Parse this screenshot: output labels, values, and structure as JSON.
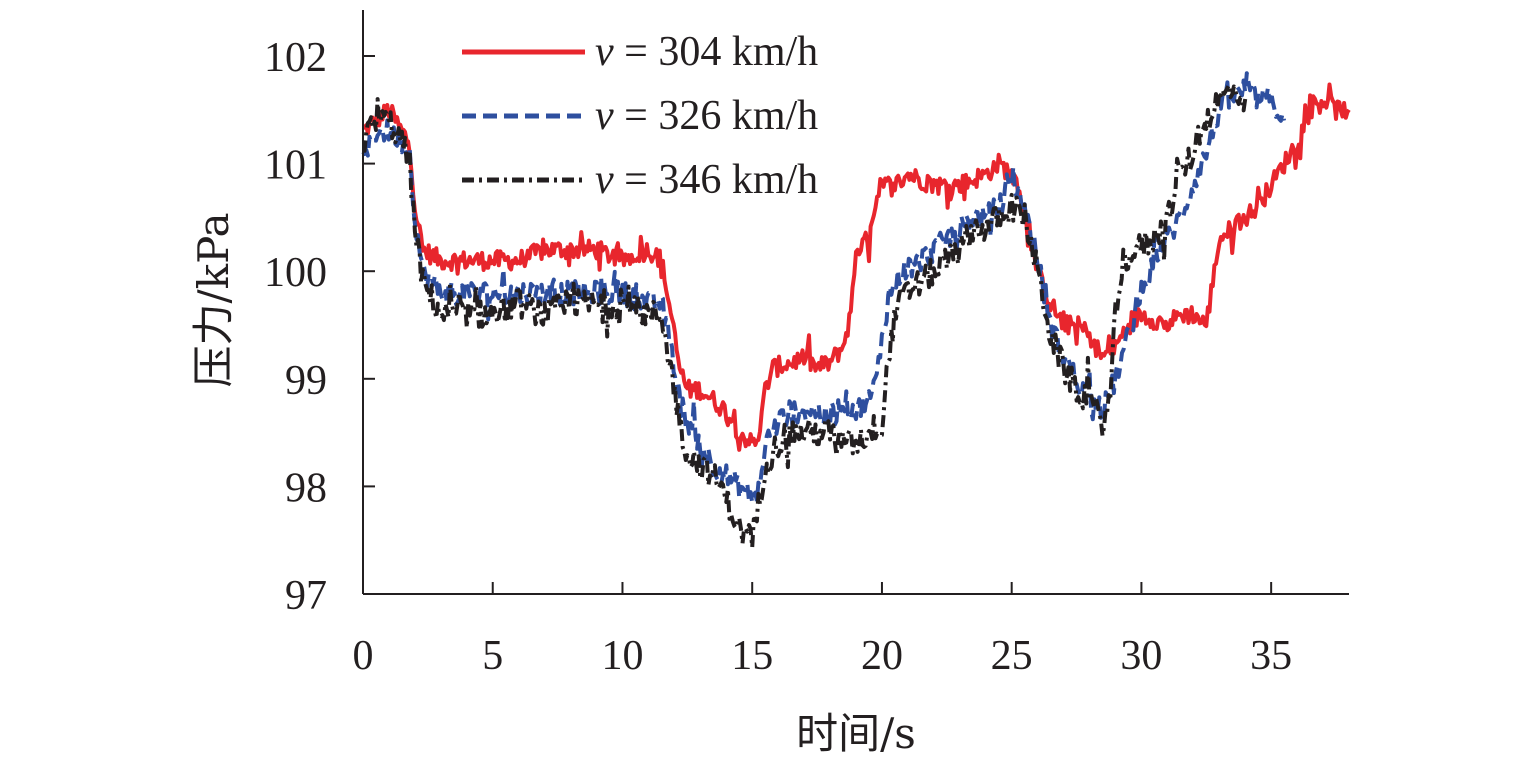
{
  "chart_data": {
    "type": "line",
    "xlabel": "时间/s",
    "ylabel": "压力/kPa",
    "xlim": [
      0,
      38
    ],
    "ylim": [
      97,
      102.5
    ],
    "x_ticks": [
      0,
      5,
      10,
      15,
      20,
      25,
      30,
      35
    ],
    "y_ticks": [
      97,
      98,
      99,
      100,
      101,
      102
    ],
    "grid": false,
    "legend_position": "top-center",
    "series": [
      {
        "name": "= 304 km/h",
        "name_prefix": "v",
        "color": "#e8262d",
        "dash": "solid",
        "points": [
          [
            0,
            101.3
          ],
          [
            0.5,
            101.4
          ],
          [
            1.0,
            101.5
          ],
          [
            1.5,
            101.3
          ],
          [
            1.8,
            101.2
          ],
          [
            2.0,
            100.6
          ],
          [
            2.3,
            100.2
          ],
          [
            3.0,
            100.1
          ],
          [
            4.0,
            100.1
          ],
          [
            5.0,
            100.1
          ],
          [
            6.0,
            100.1
          ],
          [
            7.0,
            100.2
          ],
          [
            8.0,
            100.2
          ],
          [
            9.0,
            100.2
          ],
          [
            10.0,
            100.1
          ],
          [
            11.0,
            100.2
          ],
          [
            11.5,
            100.1
          ],
          [
            11.8,
            99.7
          ],
          [
            12.2,
            99.1
          ],
          [
            12.5,
            98.9
          ],
          [
            13.0,
            98.9
          ],
          [
            13.5,
            98.8
          ],
          [
            14.0,
            98.7
          ],
          [
            14.5,
            98.5
          ],
          [
            15.0,
            98.4
          ],
          [
            15.3,
            98.5
          ],
          [
            15.5,
            98.9
          ],
          [
            15.8,
            99.1
          ],
          [
            16.5,
            99.15
          ],
          [
            17.0,
            99.2
          ],
          [
            17.5,
            99.1
          ],
          [
            18.0,
            99.15
          ],
          [
            18.5,
            99.3
          ],
          [
            18.8,
            99.6
          ],
          [
            19.0,
            100.2
          ],
          [
            19.5,
            100.3
          ],
          [
            20.0,
            100.8
          ],
          [
            20.5,
            100.8
          ],
          [
            21.0,
            100.9
          ],
          [
            22.0,
            100.8
          ],
          [
            23.0,
            100.8
          ],
          [
            24.0,
            100.9
          ],
          [
            24.5,
            101.0
          ],
          [
            25.0,
            100.9
          ],
          [
            25.3,
            100.8
          ],
          [
            25.5,
            100.5
          ],
          [
            26.0,
            100.0
          ],
          [
            26.5,
            99.7
          ],
          [
            27.0,
            99.5
          ],
          [
            27.5,
            99.5
          ],
          [
            28.0,
            99.4
          ],
          [
            28.5,
            99.2
          ],
          [
            29.0,
            99.3
          ],
          [
            29.5,
            99.5
          ],
          [
            30.0,
            99.6
          ],
          [
            31.0,
            99.5
          ],
          [
            31.5,
            99.6
          ],
          [
            32.0,
            99.6
          ],
          [
            32.5,
            99.5
          ],
          [
            33.0,
            100.3
          ],
          [
            33.5,
            100.4
          ],
          [
            34.0,
            100.5
          ],
          [
            34.5,
            100.6
          ],
          [
            35.0,
            100.8
          ],
          [
            35.5,
            101.0
          ],
          [
            36.0,
            101.2
          ],
          [
            36.5,
            101.5
          ],
          [
            37.0,
            101.6
          ],
          [
            37.5,
            101.5
          ],
          [
            38.0,
            101.5
          ]
        ]
      },
      {
        "name": "= 326 km/h",
        "name_prefix": "v",
        "color": "#2e4f9f",
        "dash": "dashed",
        "points": [
          [
            0,
            101.0
          ],
          [
            0.5,
            101.3
          ],
          [
            1.0,
            101.3
          ],
          [
            1.5,
            101.2
          ],
          [
            1.8,
            101.1
          ],
          [
            2.0,
            100.5
          ],
          [
            2.3,
            100.0
          ],
          [
            3.0,
            99.8
          ],
          [
            4.0,
            99.8
          ],
          [
            5.0,
            99.8
          ],
          [
            6.0,
            99.8
          ],
          [
            7.0,
            99.8
          ],
          [
            8.0,
            99.8
          ],
          [
            9.0,
            99.8
          ],
          [
            10.0,
            99.8
          ],
          [
            11.0,
            99.7
          ],
          [
            11.5,
            99.7
          ],
          [
            11.8,
            99.4
          ],
          [
            12.2,
            98.8
          ],
          [
            12.5,
            98.6
          ],
          [
            13.0,
            98.4
          ],
          [
            13.5,
            98.2
          ],
          [
            14.0,
            98.1
          ],
          [
            14.5,
            98.0
          ],
          [
            15.0,
            97.9
          ],
          [
            15.3,
            98.0
          ],
          [
            15.5,
            98.4
          ],
          [
            16.0,
            98.6
          ],
          [
            16.5,
            98.7
          ],
          [
            17.0,
            98.7
          ],
          [
            17.5,
            98.7
          ],
          [
            18.0,
            98.6
          ],
          [
            18.5,
            98.8
          ],
          [
            19.0,
            98.7
          ],
          [
            19.5,
            98.8
          ],
          [
            19.8,
            99.0
          ],
          [
            20.0,
            99.4
          ],
          [
            20.3,
            99.8
          ],
          [
            20.8,
            100.0
          ],
          [
            21.5,
            100.1
          ],
          [
            22.0,
            100.2
          ],
          [
            22.5,
            100.3
          ],
          [
            23.0,
            100.4
          ],
          [
            23.5,
            100.5
          ],
          [
            24.0,
            100.5
          ],
          [
            24.5,
            100.6
          ],
          [
            25.0,
            100.8
          ],
          [
            25.5,
            100.6
          ],
          [
            26.0,
            100.1
          ],
          [
            26.5,
            99.5
          ],
          [
            27.0,
            99.2
          ],
          [
            27.5,
            99.0
          ],
          [
            28.0,
            98.8
          ],
          [
            28.5,
            98.7
          ],
          [
            29.0,
            99.0
          ],
          [
            29.5,
            99.4
          ],
          [
            30.0,
            99.8
          ],
          [
            30.5,
            100.1
          ],
          [
            31.0,
            100.3
          ],
          [
            31.5,
            100.5
          ],
          [
            32.0,
            100.8
          ],
          [
            32.5,
            101.1
          ],
          [
            33.0,
            101.5
          ],
          [
            33.5,
            101.6
          ],
          [
            34.0,
            101.7
          ],
          [
            34.5,
            101.6
          ],
          [
            35.0,
            101.6
          ],
          [
            35.5,
            101.4
          ]
        ]
      },
      {
        "name": "= 346 km/h",
        "name_prefix": "v",
        "color": "#231f20",
        "dash": "dash-dot",
        "points": [
          [
            0,
            101.2
          ],
          [
            0.5,
            101.4
          ],
          [
            1.0,
            101.4
          ],
          [
            1.5,
            101.2
          ],
          [
            1.8,
            101.0
          ],
          [
            2.0,
            100.4
          ],
          [
            2.3,
            99.9
          ],
          [
            3.0,
            99.6
          ],
          [
            4.0,
            99.6
          ],
          [
            5.0,
            99.6
          ],
          [
            6.0,
            99.7
          ],
          [
            7.0,
            99.6
          ],
          [
            8.0,
            99.7
          ],
          [
            9.0,
            99.7
          ],
          [
            10.0,
            99.7
          ],
          [
            11.0,
            99.6
          ],
          [
            11.5,
            99.6
          ],
          [
            11.8,
            99.2
          ],
          [
            12.2,
            98.6
          ],
          [
            12.5,
            98.3
          ],
          [
            13.0,
            98.2
          ],
          [
            13.5,
            98.1
          ],
          [
            14.0,
            97.9
          ],
          [
            14.5,
            97.6
          ],
          [
            15.0,
            97.5
          ],
          [
            15.3,
            97.9
          ],
          [
            15.5,
            98.2
          ],
          [
            16.0,
            98.4
          ],
          [
            16.5,
            98.5
          ],
          [
            17.0,
            98.5
          ],
          [
            17.5,
            98.5
          ],
          [
            18.0,
            98.5
          ],
          [
            18.5,
            98.4
          ],
          [
            19.0,
            98.4
          ],
          [
            19.5,
            98.5
          ],
          [
            20.0,
            98.6
          ],
          [
            20.3,
            99.3
          ],
          [
            20.6,
            99.7
          ],
          [
            21.0,
            99.8
          ],
          [
            21.5,
            99.9
          ],
          [
            22.0,
            100.0
          ],
          [
            22.5,
            100.1
          ],
          [
            23.0,
            100.2
          ],
          [
            23.5,
            100.4
          ],
          [
            24.0,
            100.4
          ],
          [
            24.5,
            100.5
          ],
          [
            25.0,
            100.6
          ],
          [
            25.5,
            100.5
          ],
          [
            26.0,
            100.0
          ],
          [
            26.5,
            99.4
          ],
          [
            27.0,
            99.1
          ],
          [
            27.5,
            98.9
          ],
          [
            28.0,
            98.8
          ],
          [
            28.5,
            98.6
          ],
          [
            28.8,
            98.8
          ],
          [
            29.0,
            99.6
          ],
          [
            29.3,
            100.1
          ],
          [
            29.8,
            100.2
          ],
          [
            30.5,
            100.3
          ],
          [
            31.0,
            100.5
          ],
          [
            31.5,
            100.9
          ],
          [
            32.0,
            101.1
          ],
          [
            32.5,
            101.4
          ],
          [
            33.0,
            101.6
          ],
          [
            33.5,
            101.7
          ],
          [
            34.0,
            101.6
          ]
        ]
      }
    ]
  }
}
